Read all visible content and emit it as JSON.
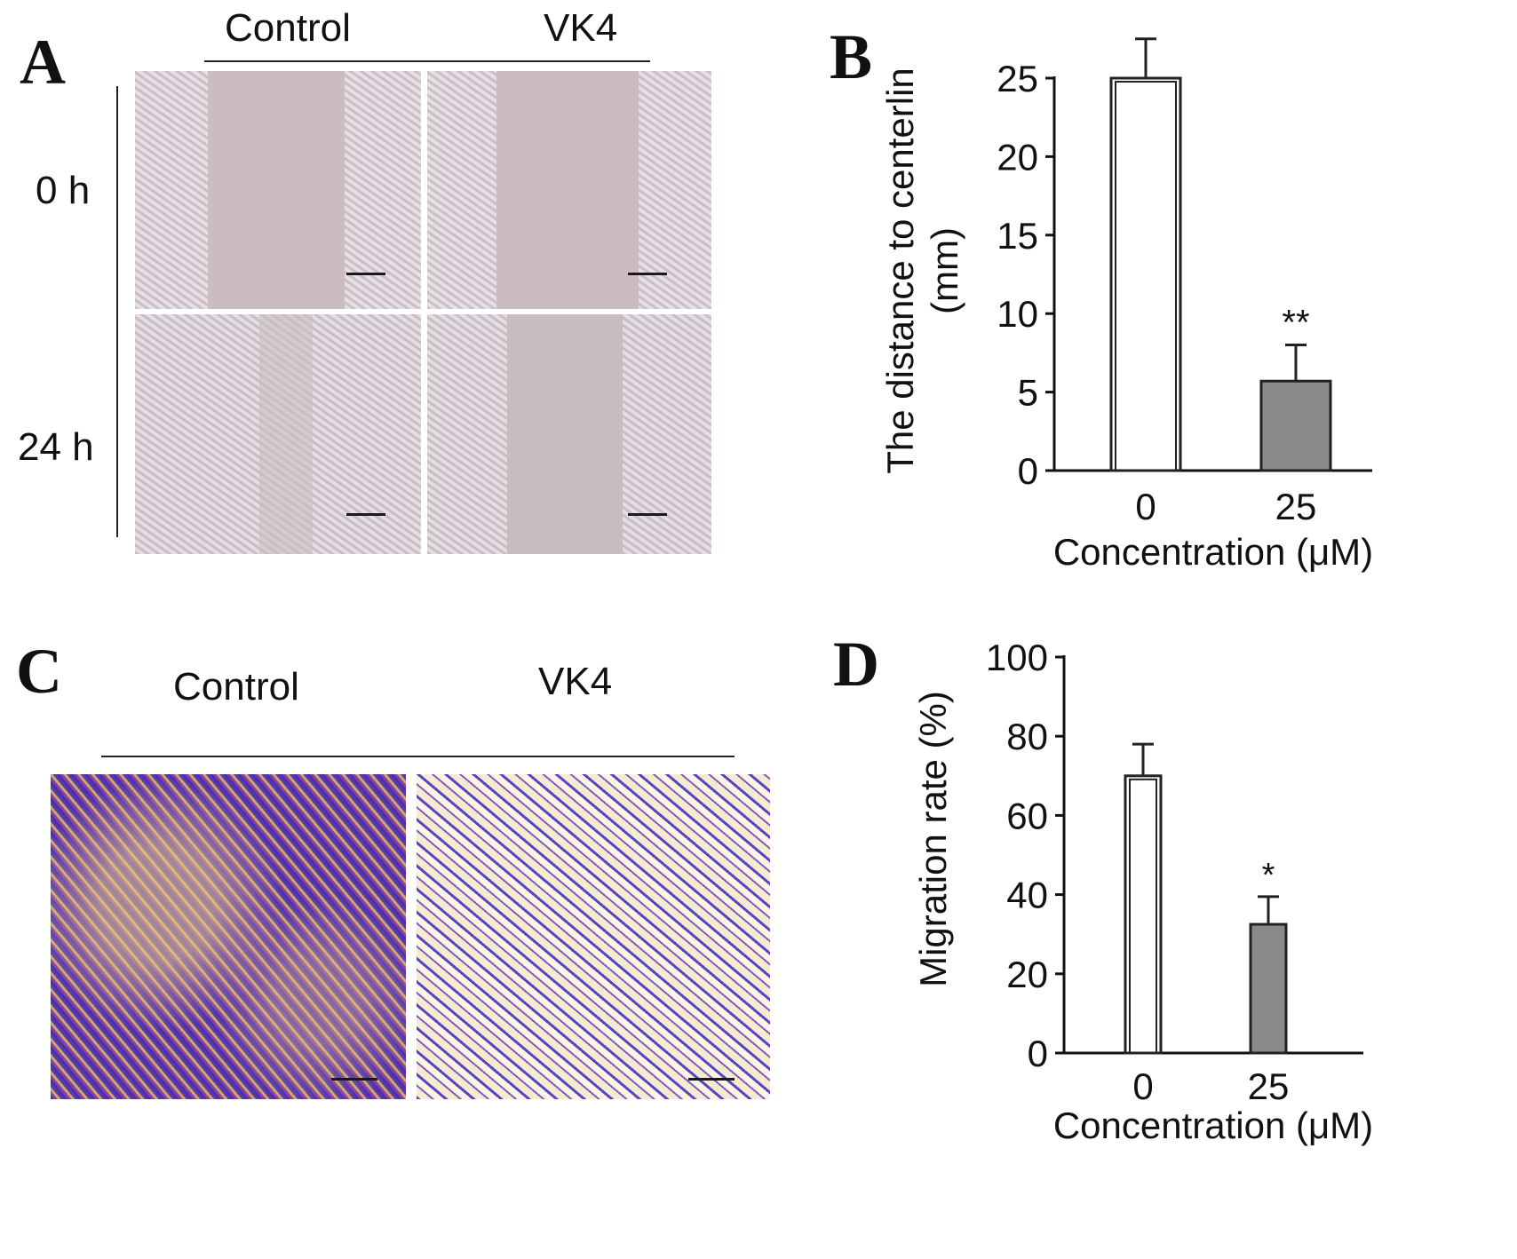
{
  "panels": {
    "A": {
      "letter": "A",
      "col_labels": [
        "Control",
        "VK4"
      ],
      "row_labels": [
        "0 h",
        "24 h"
      ]
    },
    "B": {
      "letter": "B"
    },
    "C": {
      "letter": "C",
      "col_labels": [
        "Control",
        "VK4"
      ]
    },
    "D": {
      "letter": "D"
    }
  },
  "chart_data": [
    {
      "panel": "B",
      "type": "bar",
      "categories": [
        "0",
        "25"
      ],
      "values": [
        25,
        5.7
      ],
      "errors": [
        2.5,
        2.3
      ],
      "significance": [
        "",
        "**"
      ],
      "xlabel": "Concentration (μM)",
      "ylabel": "The distance to centerlin (mm)",
      "ylabel_lines": [
        "The distance to centerlin",
        "(mm)"
      ],
      "ylim": [
        0,
        25
      ],
      "yticks": [
        0,
        5,
        10,
        15,
        20,
        25
      ],
      "bar_colors": [
        "#ffffff",
        "#8a8a8a"
      ]
    },
    {
      "panel": "D",
      "type": "bar",
      "categories": [
        "0",
        "25"
      ],
      "values": [
        70,
        32.5
      ],
      "errors": [
        8,
        7
      ],
      "significance": [
        "",
        "*"
      ],
      "xlabel": "Concentration (μM)",
      "ylabel": "Migration rate (%)",
      "ylabel_lines": [
        "Migration rate (%)"
      ],
      "ylim": [
        0,
        100
      ],
      "yticks": [
        0,
        20,
        40,
        60,
        80,
        100
      ],
      "bar_colors": [
        "#ffffff",
        "#8a8a8a"
      ]
    }
  ]
}
